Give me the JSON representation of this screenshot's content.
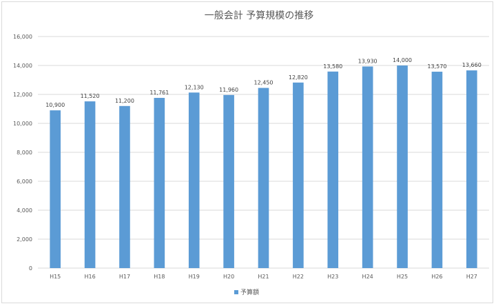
{
  "chart_data": {
    "type": "bar",
    "title": "一般会計 予算規模の推移",
    "categories": [
      "H15",
      "H16",
      "H17",
      "H18",
      "H19",
      "H20",
      "H21",
      "H22",
      "H23",
      "H24",
      "H25",
      "H26",
      "H27"
    ],
    "series": [
      {
        "name": "予算額",
        "values": [
          10900,
          11520,
          11200,
          11761,
          12130,
          11960,
          12450,
          12820,
          13580,
          13930,
          14000,
          13570,
          13660
        ],
        "labels": [
          "10,900",
          "11,520",
          "11,200",
          "11,761",
          "12,130",
          "11,960",
          "12,450",
          "12,820",
          "13,580",
          "13,930",
          "14,000",
          "13,570",
          "13,660"
        ]
      }
    ],
    "yticks": [
      "0",
      "2,000",
      "4,000",
      "6,000",
      "8,000",
      "10,000",
      "12,000",
      "14,000",
      "16,000"
    ],
    "ylim": [
      0,
      16000
    ],
    "grid": true,
    "legend": "bottom-center",
    "colors": {
      "bar": "#5b9bd5",
      "grid": "#d9d9d9"
    }
  }
}
